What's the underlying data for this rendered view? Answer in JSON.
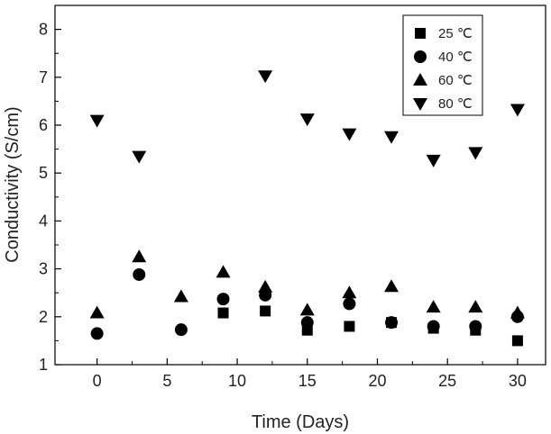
{
  "chart_data": {
    "type": "scatter",
    "xlabel": "Time (Days)",
    "ylabel": "Conductivity (S/cm)",
    "xlim": [
      -3,
      32
    ],
    "ylim": [
      1,
      8.5
    ],
    "xticks": [
      0,
      5,
      10,
      15,
      20,
      25,
      30
    ],
    "yticks": [
      1,
      2,
      3,
      4,
      5,
      6,
      7,
      8
    ],
    "grid": false,
    "legend_position": "top-right",
    "series": [
      {
        "name": "25 ℃",
        "marker": "square",
        "points": [
          [
            9,
            2.08
          ],
          [
            12,
            2.12
          ],
          [
            15,
            1.72
          ],
          [
            18,
            1.8
          ],
          [
            21,
            1.88
          ],
          [
            24,
            1.76
          ],
          [
            27,
            1.72
          ],
          [
            30,
            1.5
          ]
        ]
      },
      {
        "name": "40 ℃",
        "marker": "circle",
        "points": [
          [
            0,
            1.65
          ],
          [
            3,
            2.88
          ],
          [
            6,
            1.73
          ],
          [
            9,
            2.37
          ],
          [
            12,
            2.45
          ],
          [
            15,
            1.88
          ],
          [
            18,
            2.27
          ],
          [
            21,
            1.88
          ],
          [
            24,
            1.8
          ],
          [
            27,
            1.8
          ],
          [
            30,
            2.0
          ]
        ]
      },
      {
        "name": "60 ℃",
        "marker": "triangle-up",
        "points": [
          [
            0,
            2.08
          ],
          [
            3,
            3.25
          ],
          [
            6,
            2.42
          ],
          [
            9,
            2.93
          ],
          [
            12,
            2.62
          ],
          [
            15,
            2.14
          ],
          [
            18,
            2.5
          ],
          [
            21,
            2.63
          ],
          [
            24,
            2.2
          ],
          [
            27,
            2.2
          ],
          [
            30,
            2.08
          ]
        ]
      },
      {
        "name": "80 ℃",
        "marker": "triangle-down",
        "points": [
          [
            0,
            6.1
          ],
          [
            3,
            5.35
          ],
          [
            12,
            7.03
          ],
          [
            15,
            6.13
          ],
          [
            18,
            5.82
          ],
          [
            21,
            5.76
          ],
          [
            24,
            5.27
          ],
          [
            27,
            5.43
          ],
          [
            30,
            6.33
          ]
        ]
      }
    ]
  }
}
